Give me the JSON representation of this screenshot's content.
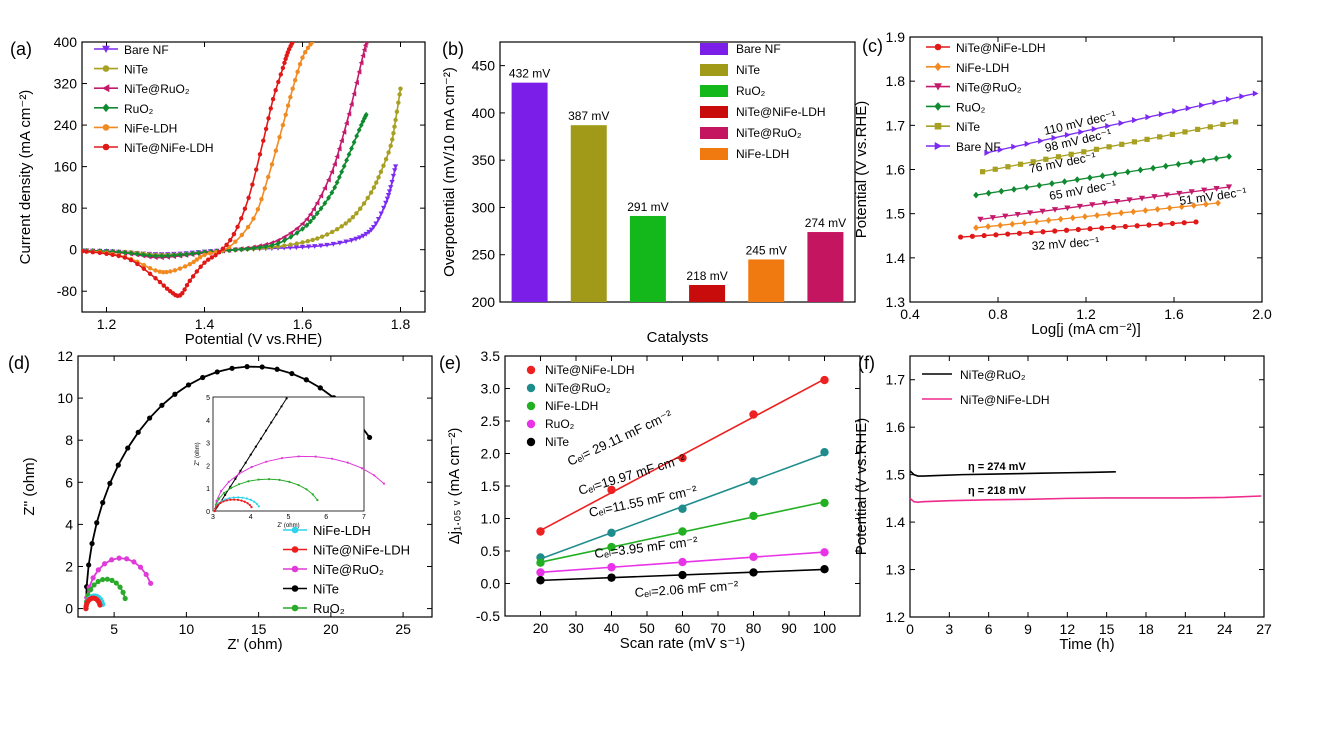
{
  "chart_data": [
    {
      "id": "a",
      "type": "line",
      "panel_label": "(a)",
      "xlabel": "Potential (V vs.RHE)",
      "ylabel": "Current density (mA cm⁻²)",
      "xlim": [
        1.15,
        1.85
      ],
      "ylim": [
        -120,
        400
      ],
      "xticks": [
        1.2,
        1.4,
        1.6,
        1.8
      ],
      "xticklabels": [
        "1.2",
        "1.4",
        "1.6",
        "1.8"
      ],
      "yticks": [
        -80,
        0,
        80,
        160,
        240,
        320,
        400
      ],
      "yticklabels": [
        "-80",
        "0",
        "80",
        "160",
        "240",
        "320",
        "400"
      ],
      "series": [
        {
          "name": "Bare NF",
          "color": "#7b2cf0",
          "marker": "triangle-down",
          "x": [
            1.15,
            1.2,
            1.25,
            1.3,
            1.35,
            1.4,
            1.45,
            1.5,
            1.55,
            1.6,
            1.65,
            1.7,
            1.73,
            1.75,
            1.77,
            1.78,
            1.79
          ],
          "y": [
            -2,
            -3,
            -6,
            -9,
            -8,
            -4,
            -1,
            1,
            3,
            5,
            9,
            18,
            30,
            50,
            90,
            120,
            160
          ]
        },
        {
          "name": "NiTe",
          "color": "#a8a022",
          "marker": "circle",
          "x": [
            1.15,
            1.2,
            1.25,
            1.3,
            1.35,
            1.4,
            1.45,
            1.5,
            1.55,
            1.6,
            1.64,
            1.68,
            1.71,
            1.74,
            1.76,
            1.78,
            1.79,
            1.8
          ],
          "y": [
            -2,
            -3,
            -5,
            -10,
            -9,
            -5,
            -1,
            2,
            6,
            14,
            25,
            45,
            70,
            110,
            150,
            200,
            250,
            310
          ]
        },
        {
          "name": "NiTe@RuO₂",
          "color": "#c41a6c",
          "marker": "triangle-left",
          "x": [
            1.15,
            1.2,
            1.25,
            1.3,
            1.35,
            1.4,
            1.45,
            1.5,
            1.55,
            1.6,
            1.63,
            1.66,
            1.68,
            1.7,
            1.72,
            1.73
          ],
          "y": [
            -2,
            -4,
            -8,
            -15,
            -12,
            -6,
            -1,
            5,
            18,
            50,
            90,
            150,
            210,
            280,
            360,
            400
          ]
        },
        {
          "name": "RuO₂",
          "color": "#108a30",
          "marker": "diamond",
          "x": [
            1.15,
            1.2,
            1.25,
            1.3,
            1.35,
            1.4,
            1.45,
            1.5,
            1.55,
            1.6,
            1.63,
            1.66,
            1.68,
            1.7,
            1.72,
            1.73
          ],
          "y": [
            -2,
            -3,
            -7,
            -12,
            -10,
            -5,
            -1,
            3,
            12,
            40,
            70,
            110,
            150,
            195,
            240,
            260
          ]
        },
        {
          "name": "NiFe-LDH",
          "color": "#f18a20",
          "marker": "circle",
          "x": [
            1.15,
            1.2,
            1.25,
            1.3,
            1.33,
            1.37,
            1.4,
            1.45,
            1.5,
            1.53,
            1.56,
            1.58,
            1.6,
            1.62
          ],
          "y": [
            -3,
            -6,
            -18,
            -40,
            -42,
            -28,
            -10,
            5,
            60,
            140,
            240,
            310,
            370,
            400
          ]
        },
        {
          "name": "NiTe@NiFe-LDH",
          "color": "#e01818",
          "marker": "circle",
          "x": [
            1.15,
            1.2,
            1.25,
            1.3,
            1.33,
            1.35,
            1.37,
            1.4,
            1.43,
            1.46,
            1.49,
            1.52,
            1.54,
            1.56,
            1.57,
            1.58
          ],
          "y": [
            -3,
            -8,
            -20,
            -55,
            -80,
            -88,
            -60,
            -25,
            -5,
            30,
            100,
            210,
            290,
            350,
            380,
            400
          ]
        }
      ]
    },
    {
      "id": "b",
      "type": "bar",
      "panel_label": "(b)",
      "xlabel": "Catalysts",
      "ylabel": "Overpotential (mV/10 mA cm⁻²)",
      "ylim": [
        200,
        475
      ],
      "yticks": [
        200,
        250,
        300,
        350,
        400,
        450
      ],
      "yticklabels": [
        "200",
        "250",
        "300",
        "350",
        "400",
        "450"
      ],
      "categories": [
        "Bare NF",
        "NiTe",
        "RuO₂",
        "NiTe@NiFe-LDH",
        "NiFe-LDH",
        "NiTe@RuO₂"
      ],
      "values": [
        432,
        387,
        291,
        218,
        245,
        274
      ],
      "value_labels": [
        "432 mV",
        "387 mV",
        "291 mV",
        "218 mV",
        "245 mV",
        "274 mV"
      ],
      "colors": [
        "#7b1fe8",
        "#a09a18",
        "#14b81a",
        "#c80c0c",
        "#f07a10",
        "#c41560"
      ],
      "legend": [
        {
          "name": "Bare NF",
          "color": "#7b1fe8"
        },
        {
          "name": "NiTe",
          "color": "#a09a18"
        },
        {
          "name": "RuO₂",
          "color": "#14b81a"
        },
        {
          "name": "NiTe@NiFe-LDH",
          "color": "#c80c0c"
        },
        {
          "name": "NiTe@RuO₂",
          "color": "#c41560"
        },
        {
          "name": "NiFe-LDH",
          "color": "#f07a10"
        }
      ]
    },
    {
      "id": "c",
      "type": "line",
      "panel_label": "(c)",
      "xlabel": "Log[j (mA cm⁻²)]",
      "ylabel": "Potential (V vs.RHE)",
      "xlim": [
        0.4,
        2.0
      ],
      "ylim": [
        1.3,
        1.9
      ],
      "xticks": [
        0.4,
        0.8,
        1.2,
        1.6,
        2.0
      ],
      "xticklabels": [
        "0.4",
        "0.8",
        "1.2",
        "1.6",
        "2.0"
      ],
      "yticks": [
        1.3,
        1.4,
        1.5,
        1.6,
        1.7,
        1.8,
        1.9
      ],
      "yticklabels": [
        "1.3",
        "1.4",
        "1.5",
        "1.6",
        "1.7",
        "1.8",
        "1.9"
      ],
      "series": [
        {
          "name": "NiTe@NiFe-LDH",
          "color": "#e01818",
          "marker": "circle",
          "x0": 0.63,
          "x1": 1.7,
          "y0": 1.447,
          "slope": 0.032,
          "n": 20,
          "tafel_label": "32 mV dec⁻¹"
        },
        {
          "name": "NiFe-LDH",
          "color": "#f18a20",
          "marker": "diamond",
          "x0": 0.7,
          "x1": 1.8,
          "y0": 1.468,
          "slope": 0.051,
          "n": 20,
          "tafel_label": "51 mV dec⁻¹"
        },
        {
          "name": "NiTe@RuO₂",
          "color": "#c41a6c",
          "marker": "triangle-down",
          "x0": 0.72,
          "x1": 1.85,
          "y0": 1.487,
          "slope": 0.065,
          "n": 20,
          "tafel_label": "65 mV dec⁻¹"
        },
        {
          "name": "RuO₂",
          "color": "#108a30",
          "marker": "diamond",
          "x0": 0.7,
          "x1": 1.85,
          "y0": 1.542,
          "slope": 0.076,
          "n": 20,
          "tafel_label": "76 mV dec⁻¹"
        },
        {
          "name": "NiTe",
          "color": "#a8a022",
          "marker": "square",
          "x0": 0.73,
          "x1": 1.88,
          "y0": 1.595,
          "slope": 0.098,
          "n": 20,
          "tafel_label": "98 mV dec⁻¹"
        },
        {
          "name": "Bare NF",
          "color": "#7b2cf0",
          "marker": "triangle-right",
          "x0": 0.75,
          "x1": 1.97,
          "y0": 1.638,
          "slope": 0.11,
          "n": 20,
          "tafel_label": "110 mV dec⁻¹"
        }
      ]
    },
    {
      "id": "d",
      "type": "scatter",
      "panel_label": "(d)",
      "xlabel": "Z' (ohm)",
      "ylabel": "Z'' (ohm)",
      "xlim": [
        2.5,
        27
      ],
      "ylim": [
        -0.4,
        12
      ],
      "xticks": [
        5,
        10,
        15,
        20,
        25
      ],
      "xticklabels": [
        "5",
        "10",
        "15",
        "20",
        "25"
      ],
      "yticks": [
        0,
        2,
        4,
        6,
        8,
        10,
        12
      ],
      "yticklabels": [
        "0",
        "2",
        "4",
        "6",
        "8",
        "10",
        "12"
      ],
      "series": [
        {
          "name": "NiFe-LDH",
          "color": "#2ed4ec",
          "marker": "circle",
          "x0": 3.05,
          "r": 0.6,
          "end_deg": 160
        },
        {
          "name": "NiTe@NiFe-LDH",
          "color": "#ee1c1c",
          "marker": "circle",
          "x0": 3.05,
          "r": 0.5,
          "end_deg": 160
        },
        {
          "name": "NiTe@RuO₂",
          "color": "#e03ad8",
          "marker": "circle",
          "x0": 3.05,
          "r": 2.4,
          "end_deg": 150
        },
        {
          "name": "NiTe",
          "color": "#000000",
          "marker": "circle",
          "x0": 3.05,
          "r": 11.5,
          "end_deg": 135
        },
        {
          "name": "RuO₂",
          "color": "#2aaa2a",
          "marker": "circle",
          "x0": 3.05,
          "r": 1.4,
          "end_deg": 160
        }
      ],
      "inset": {
        "xlabel": "Z' (ohm)",
        "ylabel": "Z'' (ohm)",
        "xlim": [
          3,
          7
        ],
        "ylim": [
          0,
          5
        ],
        "xticks": [
          3,
          4,
          5,
          6,
          7
        ],
        "xticklabels": [
          "3",
          "4",
          "5",
          "6",
          "7"
        ],
        "yticks": [
          0,
          1,
          2,
          3,
          4,
          5
        ],
        "yticklabels": [
          "0",
          "1",
          "2",
          "3",
          "4",
          "5"
        ]
      }
    },
    {
      "id": "e",
      "type": "scatter",
      "panel_label": "(e)",
      "xlabel": "Scan rate (mV s⁻¹)",
      "ylabel": "Δj₁.₀₅ ᵥ (mA cm⁻²)",
      "xlim": [
        10,
        110
      ],
      "ylim": [
        -0.5,
        3.5
      ],
      "xticks": [
        20,
        30,
        40,
        50,
        60,
        70,
        80,
        90,
        100
      ],
      "xticklabels": [
        "20",
        "30",
        "40",
        "50",
        "60",
        "70",
        "80",
        "90",
        "100"
      ],
      "yticks": [
        -0.5,
        0.0,
        0.5,
        1.0,
        1.5,
        2.0,
        2.5,
        3.0,
        3.5
      ],
      "yticklabels": [
        "-0.5",
        "0.0",
        "0.5",
        "1.0",
        "1.5",
        "2.0",
        "2.5",
        "3.0",
        "3.5"
      ],
      "series": [
        {
          "name": "NiTe@NiFe-LDH",
          "color": "#ee2020",
          "x": [
            20,
            40,
            60,
            80,
            100
          ],
          "y": [
            0.8,
            1.44,
            1.93,
            2.6,
            3.13
          ],
          "fit_label": "Cₑₗ= 29.11 mF cm⁻²"
        },
        {
          "name": "NiTe@RuO₂",
          "color": "#1f8c8c",
          "x": [
            20,
            40,
            60,
            80,
            100
          ],
          "y": [
            0.4,
            0.78,
            1.15,
            1.57,
            2.02
          ],
          "fit_label": "Cₑₗ=19.97 mF cm⁻²"
        },
        {
          "name": "NiFe-LDH",
          "color": "#22b022",
          "x": [
            20,
            40,
            60,
            80,
            100
          ],
          "y": [
            0.32,
            0.56,
            0.8,
            1.04,
            1.24
          ],
          "fit_label": "Cₑₗ=11.55 mF cm⁻²"
        },
        {
          "name": "RuO₂",
          "color": "#e833e8",
          "x": [
            20,
            40,
            60,
            80,
            100
          ],
          "y": [
            0.17,
            0.25,
            0.33,
            0.41,
            0.48
          ],
          "fit_label": "Cₑₗ=3.95 mF cm⁻²"
        },
        {
          "name": "NiTe",
          "color": "#000000",
          "x": [
            20,
            40,
            60,
            80,
            100
          ],
          "y": [
            0.05,
            0.09,
            0.13,
            0.17,
            0.22
          ],
          "fit_label": "Cₑₗ=2.06 mF cm⁻²"
        }
      ]
    },
    {
      "id": "f",
      "type": "line",
      "panel_label": "(f)",
      "xlabel": "Time (h)",
      "ylabel": "Potential (V vs.RHE)",
      "xlim": [
        0,
        27
      ],
      "ylim": [
        1.2,
        1.75
      ],
      "xticks": [
        0,
        3,
        6,
        9,
        12,
        15,
        18,
        21,
        24,
        27
      ],
      "xticklabels": [
        "0",
        "3",
        "6",
        "9",
        "12",
        "15",
        "18",
        "21",
        "24",
        "27"
      ],
      "yticks": [
        1.2,
        1.3,
        1.4,
        1.5,
        1.6,
        1.7
      ],
      "yticklabels": [
        "1.2",
        "1.3",
        "1.4",
        "1.5",
        "1.6",
        "1.7"
      ],
      "series": [
        {
          "name": "NiTe@RuO₂",
          "color": "#000000",
          "x": [
            0,
            0.3,
            0.6,
            1,
            2,
            4,
            6,
            8,
            10,
            12,
            14,
            15.7
          ],
          "y": [
            1.508,
            1.5,
            1.497,
            1.497,
            1.498,
            1.5,
            1.501,
            1.502,
            1.503,
            1.504,
            1.505,
            1.506
          ],
          "annotation": "η = 274 mV"
        },
        {
          "name": "NiTe@NiFe-LDH",
          "color": "#ee2a8c",
          "x": [
            0,
            0.3,
            0.6,
            1,
            3,
            6,
            9,
            12,
            15,
            18,
            21,
            24,
            26.8
          ],
          "y": [
            1.45,
            1.443,
            1.442,
            1.443,
            1.445,
            1.447,
            1.448,
            1.45,
            1.451,
            1.451,
            1.451,
            1.452,
            1.455
          ],
          "annotation": "η = 218 mV"
        }
      ]
    }
  ]
}
